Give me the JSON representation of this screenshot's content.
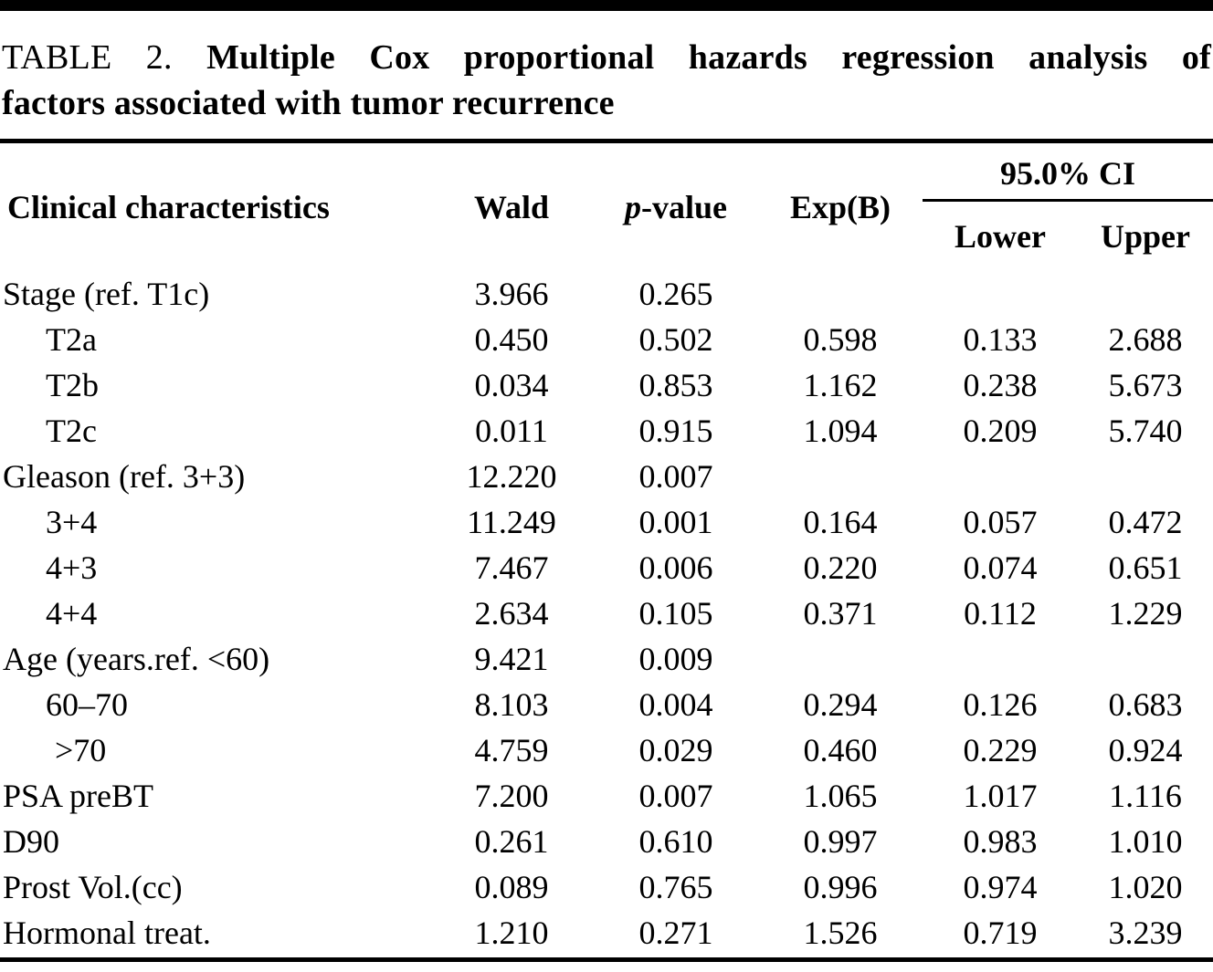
{
  "colors": {
    "background": "#ffffff",
    "text": "#000000",
    "rule": "#000000"
  },
  "title": {
    "tag": "TABLE 2.",
    "line1": "Multiple Cox proportional hazards regression analysis of",
    "line2": "factors associated with tumor recurrence"
  },
  "table": {
    "header": {
      "clinical": "Clinical characteristics",
      "wald": "Wald",
      "p_italic": "p",
      "p_rest": "-value",
      "exp_b": "Exp(B)",
      "ci_group": "95.0% CI",
      "lower": "Lower",
      "upper": "Upper"
    },
    "rows": [
      {
        "label": "Stage (ref. T1c)",
        "indent": 0,
        "wald": "3.966",
        "p": "0.265",
        "expb": "",
        "lower": "",
        "upper": ""
      },
      {
        "label": "T2a",
        "indent": 1,
        "wald": "0.450",
        "p": "0.502",
        "expb": "0.598",
        "lower": "0.133",
        "upper": "2.688"
      },
      {
        "label": "T2b",
        "indent": 1,
        "wald": "0.034",
        "p": "0.853",
        "expb": "1.162",
        "lower": "0.238",
        "upper": "5.673"
      },
      {
        "label": "T2c",
        "indent": 1,
        "wald": "0.011",
        "p": "0.915",
        "expb": "1.094",
        "lower": "0.209",
        "upper": "5.740"
      },
      {
        "label": "Gleason (ref. 3+3)",
        "indent": 0,
        "wald": "12.220",
        "p": "0.007",
        "expb": "",
        "lower": "",
        "upper": ""
      },
      {
        "label": "3+4",
        "indent": 1,
        "wald": "11.249",
        "p": "0.001",
        "expb": "0.164",
        "lower": "0.057",
        "upper": "0.472"
      },
      {
        "label": "4+3",
        "indent": 1,
        "wald": "7.467",
        "p": "0.006",
        "expb": "0.220",
        "lower": "0.074",
        "upper": "0.651"
      },
      {
        "label": "4+4",
        "indent": 1,
        "wald": "2.634",
        "p": "0.105",
        "expb": "0.371",
        "lower": "0.112",
        "upper": "1.229"
      },
      {
        "label": "Age (years.ref. <60)",
        "indent": 0,
        "wald": "9.421",
        "p": "0.009",
        "expb": "",
        "lower": "",
        "upper": ""
      },
      {
        "label": "60–70",
        "indent": 1,
        "wald": "8.103",
        "p": "0.004",
        "expb": "0.294",
        "lower": "0.126",
        "upper": "0.683"
      },
      {
        "label": ">70",
        "indent": 2,
        "wald": "4.759",
        "p": "0.029",
        "expb": "0.460",
        "lower": "0.229",
        "upper": "0.924"
      },
      {
        "label": "PSA preBT",
        "indent": 0,
        "wald": "7.200",
        "p": "0.007",
        "expb": "1.065",
        "lower": "1.017",
        "upper": "1.116"
      },
      {
        "label": "D90",
        "indent": 0,
        "wald": "0.261",
        "p": "0.610",
        "expb": "0.997",
        "lower": "0.983",
        "upper": "1.010"
      },
      {
        "label": "Prost Vol.(cc)",
        "indent": 0,
        "wald": "0.089",
        "p": "0.765",
        "expb": "0.996",
        "lower": "0.974",
        "upper": "1.020"
      },
      {
        "label": "Hormonal treat.",
        "indent": 0,
        "wald": "1.210",
        "p": "0.271",
        "expb": "1.526",
        "lower": "0.719",
        "upper": "3.239"
      }
    ]
  }
}
